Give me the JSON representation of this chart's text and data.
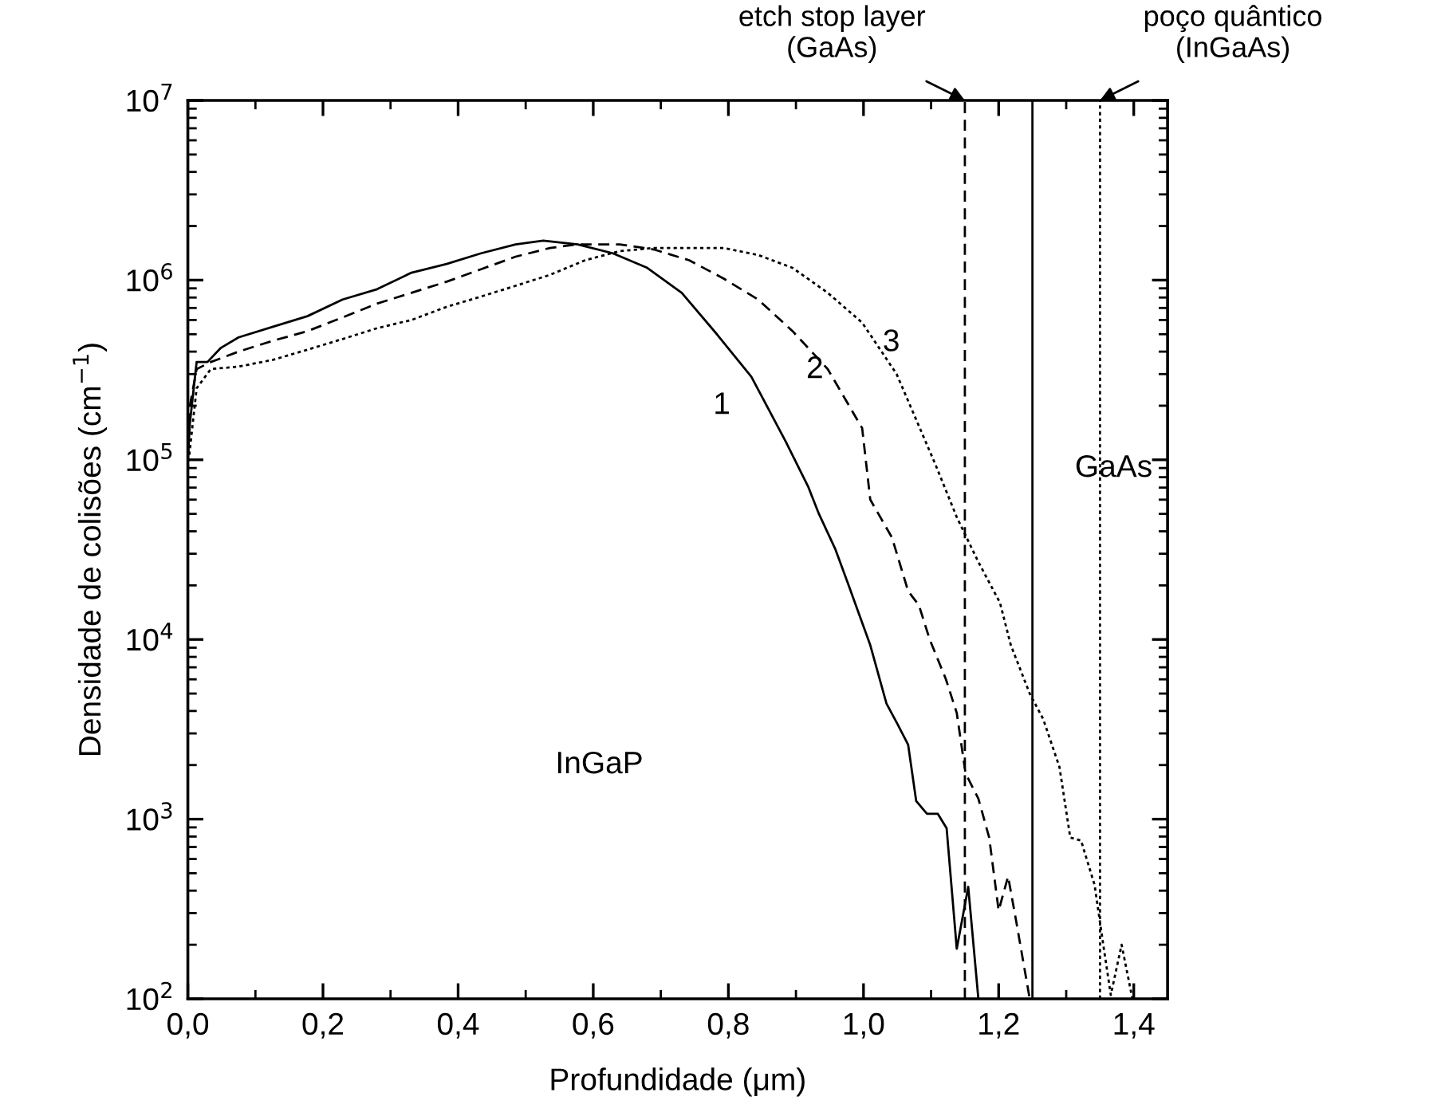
{
  "chart_data": {
    "type": "line",
    "xlabel": "Profundidade (μm)",
    "ylabel": "Densidade de colisões (cm$^{−1}$)",
    "log": "y",
    "xlim": [
      0,
      1.45
    ],
    "ylim": [
      100,
      10000000
    ],
    "xticks": [
      {
        "value": 0,
        "label": "0,0"
      },
      {
        "value": 0.2,
        "label": "0,2"
      },
      {
        "value": 0.4,
        "label": "0,4"
      },
      {
        "value": 0.6,
        "label": "0,6"
      },
      {
        "value": 0.8,
        "label": "0,8"
      },
      {
        "value": 1.0,
        "label": "1,0"
      },
      {
        "value": 1.2,
        "label": "1,2"
      },
      {
        "value": 1.4,
        "label": "1,4"
      }
    ],
    "yticks": [
      {
        "value": 100,
        "label": "10$^{2}$"
      },
      {
        "value": 1000,
        "label": "10$^{3}$"
      },
      {
        "value": 10000,
        "label": "10$^{4}$"
      },
      {
        "value": 100000,
        "label": "10$^{5}$"
      },
      {
        "value": 1000000,
        "label": "10$^{6}$"
      },
      {
        "value": 10000000,
        "label": "10$^{7}$"
      }
    ],
    "grid": false,
    "legend": false,
    "marker": "none",
    "series": [
      {
        "color": "#000000",
        "line_style": "solid",
        "x": [
          0.0,
          0.003,
          0.013,
          0.029,
          0.049,
          0.075,
          0.126,
          0.177,
          0.229,
          0.28,
          0.331,
          0.383,
          0.434,
          0.485,
          0.526,
          0.577,
          0.629,
          0.68,
          0.731,
          0.783,
          0.834,
          0.885,
          0.918,
          0.934,
          0.958,
          0.978,
          1.01,
          1.034,
          1.05,
          1.066,
          1.078,
          1.094,
          1.11,
          1.123,
          1.138,
          1.155,
          1.17
        ],
        "values": [
          100000.0,
          160000.0,
          350000.0,
          350000.0,
          420000.0,
          480000.0,
          550000.0,
          630000.0,
          780000.0,
          890000.0,
          1100000.0,
          1230000.0,
          1410000.0,
          1580000.0,
          1660000.0,
          1580000.0,
          1410000.0,
          1170000.0,
          850000.0,
          500000.0,
          290000.0,
          126000.0,
          71000.0,
          50000.0,
          32000.0,
          20000.0,
          9300.0,
          4400.0,
          3400.0,
          2600.0,
          1260.0,
          1070.0,
          1070.0,
          890.0,
          190.0,
          420.0,
          100.0
        ]
      },
      {
        "color": "#000000",
        "line_style": "dashed",
        "x": [
          0.0,
          0.003,
          0.013,
          0.034,
          0.075,
          0.126,
          0.177,
          0.229,
          0.28,
          0.331,
          0.383,
          0.434,
          0.485,
          0.536,
          0.577,
          0.639,
          0.69,
          0.742,
          0.793,
          0.844,
          0.895,
          0.947,
          0.998,
          1.01,
          1.042,
          1.066,
          1.082,
          1.098,
          1.122,
          1.138,
          1.151,
          1.17,
          1.186,
          1.2,
          1.214,
          1.226,
          1.246
        ],
        "values": [
          100000.0,
          200000.0,
          320000.0,
          350000.0,
          400000.0,
          460000.0,
          520000.0,
          620000.0,
          740000.0,
          850000.0,
          980000.0,
          1150000.0,
          1350000.0,
          1510000.0,
          1580000.0,
          1580000.0,
          1480000.0,
          1290000.0,
          1020000.0,
          780000.0,
          520000.0,
          320000.0,
          150000.0,
          60000.0,
          37000.0,
          18600.0,
          15500.0,
          10000.0,
          6000.0,
          3900.0,
          1800.0,
          1300.0,
          790.0,
          310.0,
          480.0,
          270.0,
          100.0
        ]
      },
      {
        "color": "#000000",
        "line_style": "dotted",
        "x": [
          0.0,
          0.013,
          0.034,
          0.075,
          0.126,
          0.177,
          0.229,
          0.28,
          0.331,
          0.383,
          0.434,
          0.485,
          0.536,
          0.588,
          0.639,
          0.69,
          0.742,
          0.793,
          0.844,
          0.895,
          0.947,
          0.998,
          1.049,
          1.106,
          1.138,
          1.17,
          1.202,
          1.218,
          1.246,
          1.266,
          1.29,
          1.306,
          1.322,
          1.342,
          1.354,
          1.366,
          1.382,
          1.398
        ],
        "values": [
          90000.0,
          250000.0,
          320000.0,
          330000.0,
          360000.0,
          410000.0,
          470000.0,
          540000.0,
          600000.0,
          710000.0,
          810000.0,
          930000.0,
          1070000.0,
          1290000.0,
          1450000.0,
          1510000.0,
          1510000.0,
          1510000.0,
          1380000.0,
          1170000.0,
          850000.0,
          580000.0,
          300000.0,
          95000.0,
          48000.0,
          27000.0,
          16000.0,
          9300.0,
          5000.0,
          3600.0,
          1950.0,
          790.0,
          760.0,
          430.0,
          210.0,
          105.0,
          200.0,
          100.0
        ]
      }
    ],
    "ref_lines": [
      {
        "axis": "x",
        "value": 1.15,
        "color": "#000000",
        "line_style": "dashed"
      },
      {
        "axis": "x",
        "value": 1.25,
        "color": "#000000",
        "line_style": "solid"
      },
      {
        "axis": "x",
        "value": 1.35,
        "color": "#000000",
        "line_style": "dotted"
      }
    ],
    "annotations": [
      {
        "text": "etch stop layer\n(GaAs)",
        "x": 1.15,
        "y": 10000000
      },
      {
        "text": "poço quântico\n(InGaAs)",
        "x": 1.35,
        "y": 10000000
      },
      "1",
      "2",
      "3",
      "GaAs",
      "InGaP"
    ]
  }
}
